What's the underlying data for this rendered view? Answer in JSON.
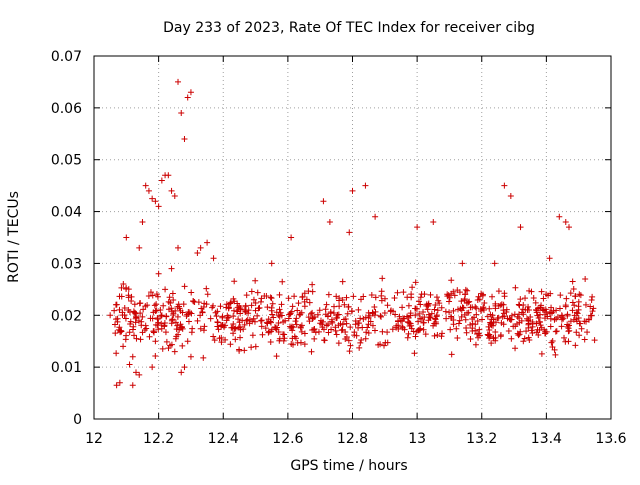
{
  "chart_data": {
    "type": "scatter",
    "title": "Day 233 of 2023, Rate Of TEC Index for receiver cibg",
    "xlabel": "GPS time / hours",
    "ylabel": "ROTI / TECUs",
    "xlim": [
      12,
      13.6
    ],
    "ylim": [
      0,
      0.07
    ],
    "xticks": [
      "12",
      "12.2",
      "12.4",
      "12.6",
      "12.8",
      "13",
      "13.2",
      "13.4",
      "13.6"
    ],
    "yticks": [
      "0",
      "0.01",
      "0.02",
      "0.03",
      "0.04",
      "0.05",
      "0.06",
      "0.07"
    ],
    "grid": true,
    "marker": "plus",
    "color": "#cc0000",
    "series": [
      {
        "x": [
          12.07,
          12.08,
          12.11,
          12.12,
          12.13,
          12.14,
          12.15,
          12.16,
          12.17,
          12.18,
          12.19,
          12.2,
          12.21,
          12.22,
          12.23,
          12.24,
          12.25,
          12.26,
          12.27,
          12.28,
          12.29,
          12.3,
          12.33,
          12.35,
          12.8,
          12.84,
          12.87,
          13.27,
          13.29,
          13.44,
          13.46,
          13.47,
          12.1,
          12.14,
          12.32,
          12.37,
          12.55,
          12.61,
          12.71,
          12.73,
          12.79,
          13.0,
          13.05,
          13.14,
          13.24,
          13.32,
          13.41,
          13.52,
          12.25,
          12.27,
          12.28,
          12.29,
          12.3,
          12.26,
          12.24,
          12.22,
          12.18,
          12.2,
          12.21,
          12.19,
          12.05,
          12.12,
          12.09,
          12.16
        ],
        "y": [
          0.0065,
          0.007,
          0.0105,
          0.0065,
          0.009,
          0.0085,
          0.038,
          0.045,
          0.044,
          0.0425,
          0.042,
          0.041,
          0.046,
          0.047,
          0.047,
          0.044,
          0.043,
          0.065,
          0.059,
          0.054,
          0.062,
          0.063,
          0.033,
          0.034,
          0.044,
          0.045,
          0.039,
          0.045,
          0.043,
          0.039,
          0.038,
          0.037,
          0.035,
          0.033,
          0.032,
          0.031,
          0.03,
          0.035,
          0.042,
          0.038,
          0.036,
          0.037,
          0.038,
          0.03,
          0.03,
          0.037,
          0.031,
          0.027,
          0.013,
          0.009,
          0.01,
          0.015,
          0.012,
          0.033,
          0.029,
          0.025,
          0.01,
          0.028,
          0.02,
          0.015,
          0.02,
          0.012,
          0.014,
          0.018
        ]
      }
    ],
    "filler_density": {
      "x_range": [
        12.06,
        13.55
      ],
      "y_center": 0.0195,
      "y_spread": 0.0085,
      "count": 900
    }
  }
}
